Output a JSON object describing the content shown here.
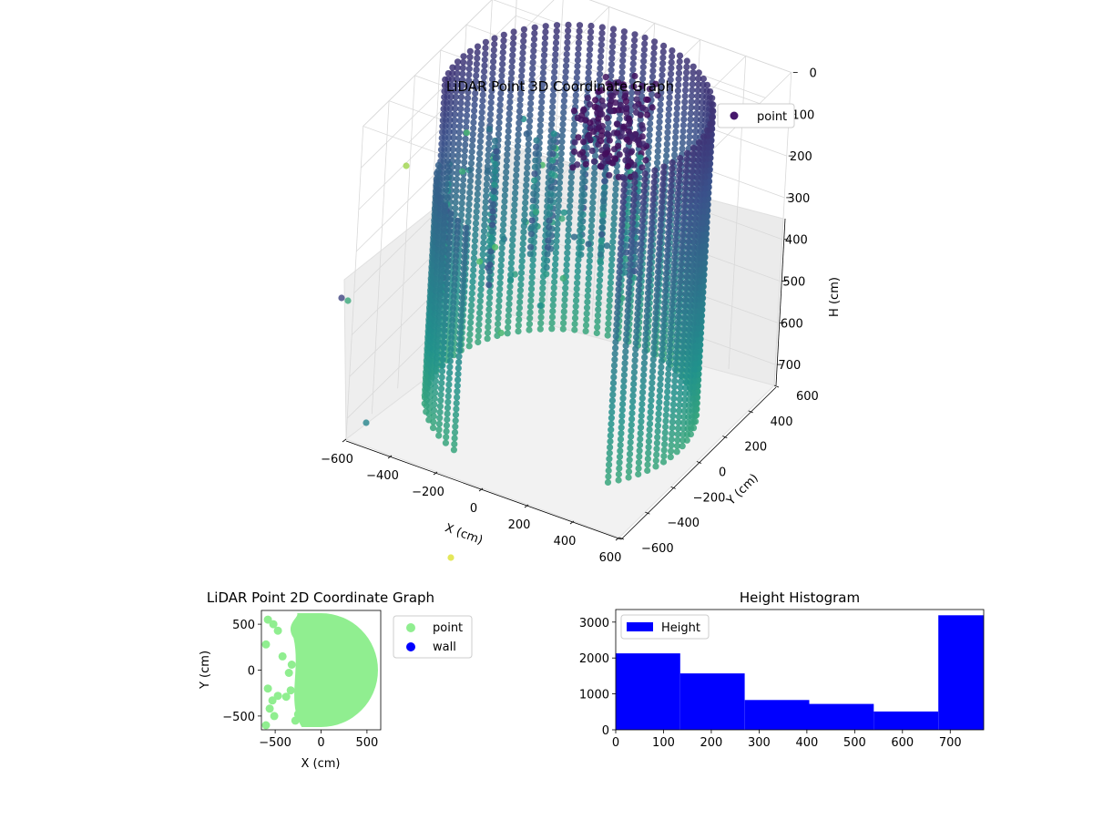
{
  "figure_background": "#ffffff",
  "chart_data": [
    {
      "id": "lidar-3d",
      "type": "scatter",
      "projection": "3d",
      "title": "LiDAR Point 3D Coordinate Graph",
      "xlabel": "X (cm)",
      "ylabel": "Y (cm)",
      "zlabel": "H (cm)",
      "xlim": [
        -600,
        600
      ],
      "ylim": [
        -600,
        600
      ],
      "zlim": [
        0,
        750
      ],
      "z_inverted": true,
      "x_ticks": [
        -600,
        -400,
        -200,
        0,
        200,
        400,
        600
      ],
      "y_ticks": [
        -600,
        -400,
        -200,
        0,
        200,
        400,
        600
      ],
      "z_ticks": [
        0,
        100,
        200,
        300,
        400,
        500,
        600,
        700
      ],
      "grid": true,
      "colormap": "viridis",
      "legend": {
        "placement": "top-right",
        "entries": [
          {
            "label": "point",
            "color": "#46186c"
          }
        ]
      },
      "series": [
        {
          "name": "point",
          "description_points": [
            {
              "x": 520,
              "y": 350,
              "z": 640,
              "note": "cylindrical wall ring radius ~520"
            },
            {
              "x": -350,
              "y": 350,
              "z": 150
            },
            {
              "x": 50,
              "y": 450,
              "z": 120
            },
            {
              "x": -150,
              "y": 420,
              "z": 200
            },
            {
              "x": -620,
              "y": 100,
              "z": 300
            },
            {
              "x": -580,
              "y": -120,
              "z": 600
            },
            {
              "x": 620,
              "y": -600,
              "z": 400
            }
          ]
        }
      ]
    },
    {
      "id": "lidar-2d",
      "type": "scatter",
      "title": "LiDAR Point 2D Coordinate Graph",
      "xlabel": "X (cm)",
      "ylabel": "Y (cm)",
      "xlim": [
        -650,
        650
      ],
      "ylim": [
        -650,
        650
      ],
      "x_ticks": [
        -500,
        0,
        500
      ],
      "y_ticks": [
        -500,
        0,
        500
      ],
      "legend": {
        "placement": "outside-right",
        "entries": [
          {
            "label": "point",
            "color": "#90ee90"
          },
          {
            "label": "wall",
            "color": "#0000ff"
          }
        ]
      },
      "series": [
        {
          "name": "point",
          "color": "#90ee90",
          "x": [
            -580,
            -520,
            -470,
            -600,
            -420,
            -350,
            -470,
            -580,
            -530,
            -380,
            -330,
            -560,
            -510,
            -250,
            -280,
            -600,
            -320
          ],
          "y": [
            550,
            500,
            430,
            280,
            150,
            -30,
            -280,
            -200,
            -330,
            -290,
            -220,
            -420,
            -500,
            -480,
            -550,
            -600,
            60
          ]
        },
        {
          "name": "wall",
          "color": "#0000ff",
          "x": [],
          "y": []
        }
      ]
    },
    {
      "id": "height-hist",
      "type": "bar",
      "title": "Height Histogram",
      "xlim": [
        0,
        770
      ],
      "ylim": [
        0,
        3350
      ],
      "x_ticks": [
        0,
        100,
        200,
        300,
        400,
        500,
        600,
        700
      ],
      "y_ticks": [
        0,
        1000,
        2000,
        3000
      ],
      "legend": {
        "placement": "top-left",
        "entries": [
          {
            "label": "Height",
            "color": "#0000ff"
          }
        ]
      },
      "series": [
        {
          "name": "Height",
          "color": "#0000ff",
          "bin_edges": [
            0,
            135,
            270,
            405,
            540,
            675,
            770
          ],
          "counts": [
            2130,
            1570,
            830,
            720,
            510,
            3190
          ]
        }
      ]
    }
  ]
}
